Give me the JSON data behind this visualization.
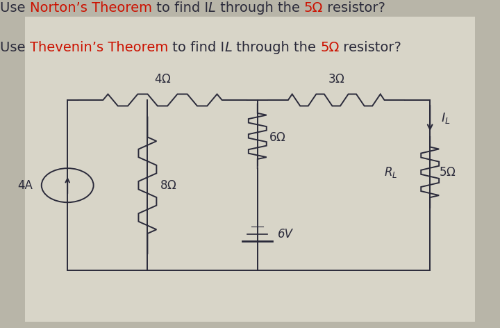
{
  "bg_color": "#b8b5a8",
  "inner_bg": "#d8d5c8",
  "text_color_black": "#2a2a3a",
  "text_color_red": "#cc1100",
  "circuit": {
    "xA": 0.135,
    "xB": 0.86,
    "xM": 0.515,
    "xL": 0.295,
    "yT": 0.695,
    "yBot": 0.175
  },
  "label_4ohm": "4Ω",
  "label_3ohm": "3Ω",
  "label_6ohm": "6Ω",
  "label_8ohm": "8Ω",
  "label_5ohm": "5Ω",
  "label_RL": "R_L",
  "label_IL": "I_L",
  "label_4A": "4A",
  "label_6V": "6V",
  "font_circuit": 12,
  "font_title": 14,
  "lw_circuit": 1.4
}
